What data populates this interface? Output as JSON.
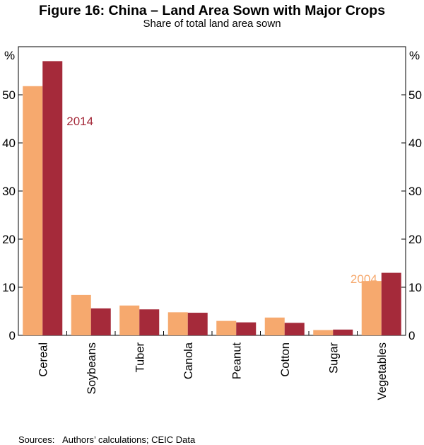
{
  "chart_data": {
    "type": "bar",
    "title": "Figure 16: China – Land Area Sown with Major Crops",
    "subtitle": "Share of total land area sown",
    "ylabel_left": "%",
    "ylabel_right": "%",
    "ylim": [
      0,
      60
    ],
    "yticks": [
      0,
      10,
      20,
      30,
      40,
      50
    ],
    "categories": [
      "Cereal",
      "Soybeans",
      "Tuber",
      "Canola",
      "Peanut",
      "Cotton",
      "Sugar",
      "Vegetables"
    ],
    "series": [
      {
        "name": "2004",
        "color": "#F6A96E",
        "values": [
          51.8,
          8.4,
          6.2,
          4.8,
          3.0,
          3.7,
          1.1,
          11.3
        ]
      },
      {
        "name": "2014",
        "color": "#A52A3A",
        "values": [
          57.0,
          5.6,
          5.4,
          4.7,
          2.7,
          2.6,
          1.2,
          13.0
        ]
      }
    ],
    "legend": "inline",
    "source": "Sources:   Authors’ calculations; CEIC Data"
  }
}
